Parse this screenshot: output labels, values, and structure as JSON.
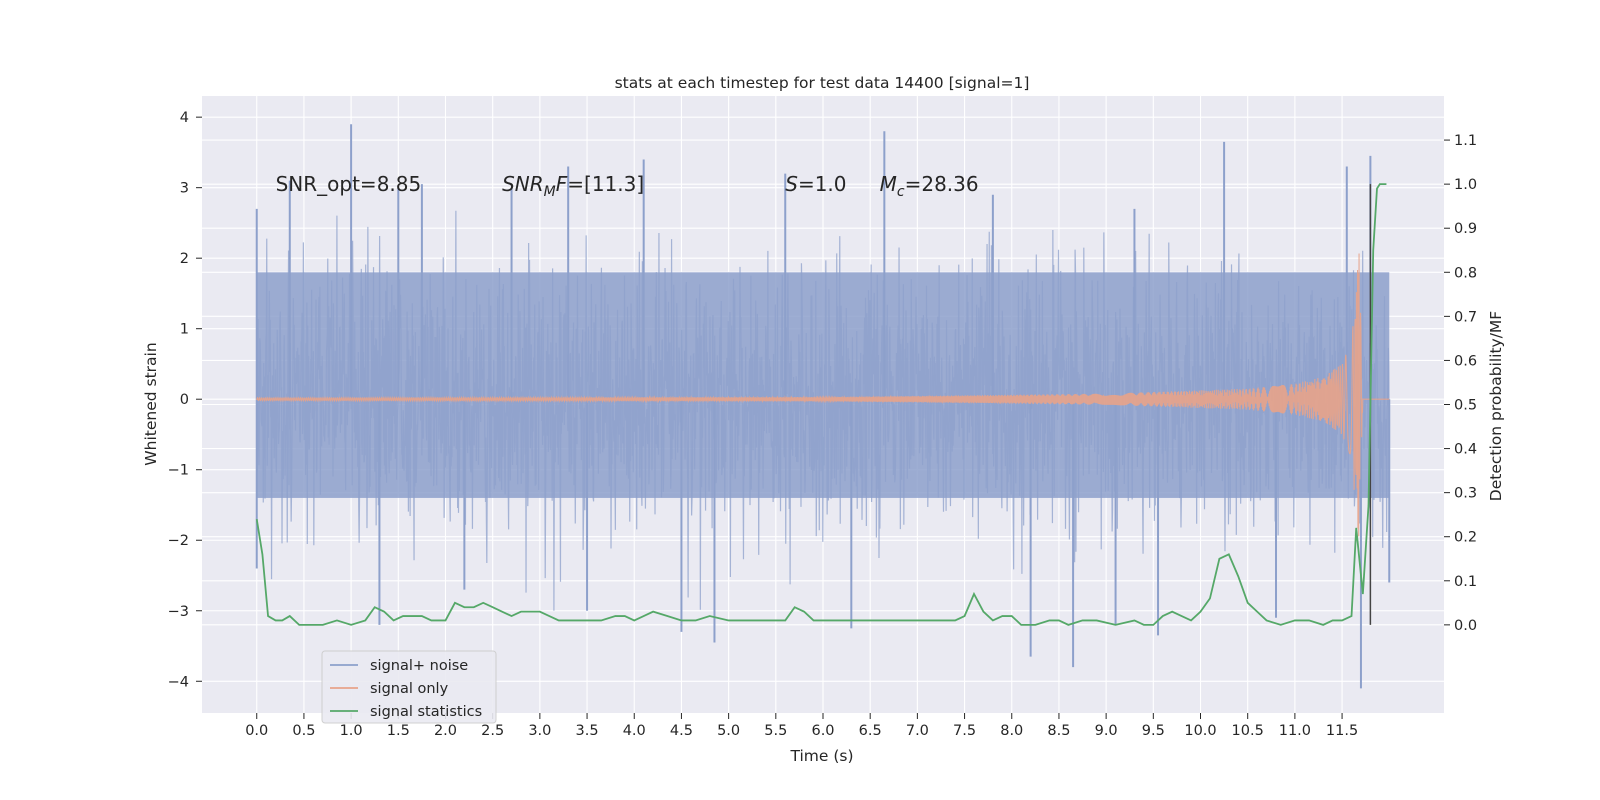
{
  "chart_data": {
    "type": "line",
    "title": "stats at each timestep for test data 14400 [signal=1]",
    "xlabel": "Time (s)",
    "ylabel_left": "Whitened strain",
    "ylabel_right": "Detection probability/MF",
    "xlim": [
      -0.58,
      12.58
    ],
    "ylim_left": [
      -4.45,
      4.3
    ],
    "ylim_right": [
      -0.2,
      1.2
    ],
    "x_ticks": [
      0.0,
      0.5,
      1.0,
      1.5,
      2.0,
      2.5,
      3.0,
      3.5,
      4.0,
      4.5,
      5.0,
      5.5,
      6.0,
      6.5,
      7.0,
      7.5,
      8.0,
      8.5,
      9.0,
      9.5,
      10.0,
      10.5,
      11.0,
      11.5
    ],
    "x_tick_labels": [
      "0.0",
      "0.5",
      "1.0",
      "1.5",
      "2.0",
      "2.5",
      "3.0",
      "3.5",
      "4.0",
      "4.5",
      "5.0",
      "5.5",
      "6.0",
      "6.5",
      "7.0",
      "7.5",
      "8.0",
      "8.5",
      "9.0",
      "9.5",
      "10.0",
      "10.5",
      "11.0",
      "11.5"
    ],
    "y_left_ticks": [
      -4,
      -3,
      -2,
      -1,
      0,
      1,
      2,
      3,
      4
    ],
    "y_left_tick_labels": [
      "−4",
      "−3",
      "−2",
      "−1",
      "0",
      "1",
      "2",
      "3",
      "4"
    ],
    "y_right_ticks": [
      0.0,
      0.1,
      0.2,
      0.3,
      0.4,
      0.5,
      0.6,
      0.7,
      0.8,
      0.9,
      1.0,
      1.1
    ],
    "y_right_tick_labels": [
      "0.0",
      "0.1",
      "0.2",
      "0.3",
      "0.4",
      "0.5",
      "0.6",
      "0.7",
      "0.8",
      "0.9",
      "1.0",
      "1.1"
    ],
    "grid": true,
    "legend_position": "bottom-left",
    "annotations": [
      {
        "x": 0.2,
        "y": 3.05,
        "parts": [
          {
            "t": "SNR_opt=8.85",
            "i": false
          }
        ]
      },
      {
        "x": 2.6,
        "y": 3.05,
        "parts": [
          {
            "t": "SNR",
            "i": true
          },
          {
            "t": "M",
            "i": true,
            "sub": true
          },
          {
            "t": "F",
            "i": true
          },
          {
            "t": "=[11.3]",
            "i": false
          }
        ]
      },
      {
        "x": 5.6,
        "y": 3.05,
        "parts": [
          {
            "t": "S",
            "i": true
          },
          {
            "t": "=1.0",
            "i": false
          }
        ]
      },
      {
        "x": 6.6,
        "y": 3.05,
        "parts": [
          {
            "t": "M",
            "i": true
          },
          {
            "t": "c",
            "i": true,
            "sub": true
          },
          {
            "t": "=28.36",
            "i": false
          }
        ]
      }
    ],
    "vline": {
      "x": 11.8,
      "y_range": [
        0.0,
        1.0
      ],
      "color": "#444444"
    },
    "series": [
      {
        "name": "signal+ noise",
        "axis": "left",
        "color": "#8da0cb",
        "alpha": 0.8,
        "kind": "noise_band",
        "x_range": [
          0.0,
          12.0
        ],
        "typical_range": [
          -1.4,
          1.8
        ],
        "peaks_up": [
          [
            0.0,
            2.7
          ],
          [
            0.35,
            3.1
          ],
          [
            1.0,
            3.9
          ],
          [
            1.5,
            3.0
          ],
          [
            1.75,
            3.05
          ],
          [
            2.7,
            3.0
          ],
          [
            3.3,
            3.3
          ],
          [
            4.1,
            3.4
          ],
          [
            5.6,
            3.2
          ],
          [
            6.65,
            3.8
          ],
          [
            7.8,
            2.9
          ],
          [
            9.3,
            2.7
          ],
          [
            10.25,
            3.65
          ],
          [
            11.55,
            3.3
          ],
          [
            11.8,
            3.45
          ]
        ],
        "peaks_down": [
          [
            0.0,
            -2.4
          ],
          [
            1.3,
            -3.2
          ],
          [
            2.2,
            -2.7
          ],
          [
            3.5,
            -3.0
          ],
          [
            4.5,
            -3.3
          ],
          [
            4.85,
            -3.45
          ],
          [
            6.3,
            -3.25
          ],
          [
            8.2,
            -3.65
          ],
          [
            8.65,
            -3.8
          ],
          [
            9.1,
            -3.2
          ],
          [
            9.55,
            -3.35
          ],
          [
            10.8,
            -3.1
          ],
          [
            11.7,
            -4.1
          ],
          [
            12.0,
            -2.6
          ]
        ]
      },
      {
        "name": "signal only",
        "axis": "left",
        "color": "#e8a38a",
        "kind": "chirp",
        "x_range": [
          0.0,
          12.0
        ],
        "envelope": [
          [
            0.0,
            0.02
          ],
          [
            6.0,
            0.03
          ],
          [
            9.0,
            0.08
          ],
          [
            10.5,
            0.15
          ],
          [
            11.0,
            0.22
          ],
          [
            11.3,
            0.32
          ],
          [
            11.5,
            0.5
          ],
          [
            11.6,
            0.85
          ],
          [
            11.68,
            2.1
          ],
          [
            11.72,
            0.0
          ],
          [
            12.0,
            0.0
          ]
        ]
      },
      {
        "name": "signal statistics",
        "axis": "right",
        "color": "#55a868",
        "x": [
          0.0,
          0.06,
          0.12,
          0.2,
          0.27,
          0.35,
          0.45,
          0.55,
          0.7,
          0.85,
          1.0,
          1.15,
          1.25,
          1.35,
          1.45,
          1.55,
          1.65,
          1.75,
          1.85,
          2.0,
          2.1,
          2.2,
          2.3,
          2.4,
          2.5,
          2.6,
          2.7,
          2.8,
          2.9,
          3.0,
          3.1,
          3.2,
          3.35,
          3.5,
          3.65,
          3.8,
          3.9,
          4.0,
          4.1,
          4.2,
          4.35,
          4.5,
          4.65,
          4.8,
          5.0,
          5.2,
          5.4,
          5.6,
          5.7,
          5.8,
          5.9,
          6.0,
          6.2,
          6.4,
          6.6,
          6.8,
          7.0,
          7.2,
          7.4,
          7.5,
          7.6,
          7.7,
          7.8,
          7.9,
          8.0,
          8.1,
          8.25,
          8.4,
          8.5,
          8.6,
          8.75,
          8.9,
          9.1,
          9.3,
          9.4,
          9.5,
          9.6,
          9.7,
          9.8,
          9.9,
          10.0,
          10.1,
          10.2,
          10.3,
          10.4,
          10.5,
          10.6,
          10.7,
          10.85,
          11.0,
          11.15,
          11.3,
          11.4,
          11.5,
          11.6,
          11.65,
          11.72,
          11.78,
          11.83,
          11.87,
          11.9,
          11.97
        ],
        "y": [
          0.24,
          0.16,
          0.02,
          0.01,
          0.01,
          0.02,
          0.0,
          0.0,
          0.0,
          0.01,
          0.0,
          0.01,
          0.04,
          0.03,
          0.01,
          0.02,
          0.02,
          0.02,
          0.01,
          0.01,
          0.05,
          0.04,
          0.04,
          0.05,
          0.04,
          0.03,
          0.02,
          0.03,
          0.03,
          0.03,
          0.02,
          0.01,
          0.01,
          0.01,
          0.01,
          0.02,
          0.02,
          0.01,
          0.02,
          0.03,
          0.02,
          0.01,
          0.01,
          0.02,
          0.01,
          0.01,
          0.01,
          0.01,
          0.04,
          0.03,
          0.01,
          0.01,
          0.01,
          0.01,
          0.01,
          0.01,
          0.01,
          0.01,
          0.01,
          0.02,
          0.07,
          0.03,
          0.01,
          0.02,
          0.02,
          0.0,
          0.0,
          0.01,
          0.01,
          0.0,
          0.01,
          0.01,
          0.0,
          0.01,
          0.0,
          0.0,
          0.02,
          0.03,
          0.02,
          0.01,
          0.03,
          0.06,
          0.15,
          0.16,
          0.11,
          0.05,
          0.03,
          0.01,
          0.0,
          0.01,
          0.01,
          0.0,
          0.01,
          0.01,
          0.02,
          0.22,
          0.07,
          0.27,
          0.85,
          0.99,
          1.0,
          1.0
        ]
      }
    ]
  }
}
